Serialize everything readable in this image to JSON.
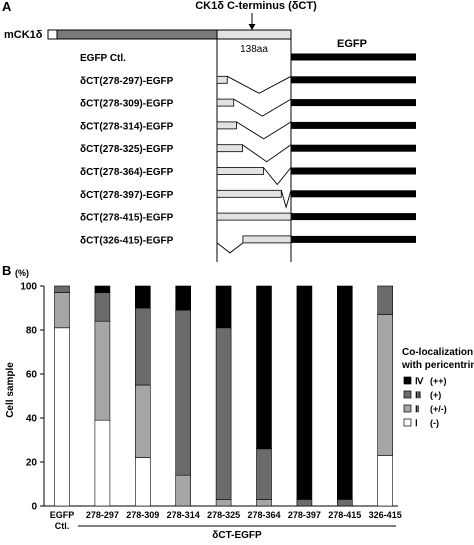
{
  "panel_a": {
    "label": "A",
    "protein_label": "mCK1δ",
    "cterm_label": "CK1δ C-terminus (δCT)",
    "length_label": "138aa",
    "egfp_label": "EGFP",
    "constructs": [
      {
        "label": "EGFP  Ctl.",
        "start": null,
        "end": null
      },
      {
        "label": "δCT(278-297)-EGFP",
        "start": 278,
        "end": 297
      },
      {
        "label": "δCT(278-309)-EGFP",
        "start": 278,
        "end": 309
      },
      {
        "label": "δCT(278-314)-EGFP",
        "start": 278,
        "end": 314
      },
      {
        "label": "δCT(278-325)-EGFP",
        "start": 278,
        "end": 325
      },
      {
        "label": "δCT(278-364)-EGFP",
        "start": 278,
        "end": 364
      },
      {
        "label": "δCT(278-397)-EGFP",
        "start": 278,
        "end": 397
      },
      {
        "label": "δCT(278-415)-EGFP",
        "start": 278,
        "end": 415
      },
      {
        "label": "δCT(326-415)-EGFP",
        "start": 326,
        "end": 415
      }
    ],
    "colors": {
      "kinase": "#7a7a7a",
      "cterm": "#e2e2e2",
      "egfp": "#000000"
    }
  },
  "panel_b": {
    "label": "B"
  },
  "chart_data": {
    "type": "bar",
    "stacked": true,
    "ylabel": "Cell sample",
    "yunit": "(%)",
    "xlabel": "δCT-EGFP",
    "ylim": [
      0,
      100
    ],
    "yticks": [
      0,
      20,
      40,
      60,
      80,
      100
    ],
    "categories": [
      "EGFP Ctl.",
      "278-297",
      "278-309",
      "278-314",
      "278-325",
      "278-364",
      "278-397",
      "278-415",
      "326-415"
    ],
    "series": [
      {
        "name": "Ⅰ",
        "symbol": "(-)",
        "color": "#ffffff",
        "values": [
          81,
          39,
          22,
          0,
          0,
          0,
          0,
          0,
          23
        ]
      },
      {
        "name": "Ⅱ",
        "symbol": "(+/-)",
        "color": "#a6a6a6",
        "values": [
          16,
          45,
          33,
          14,
          3,
          3,
          0,
          0,
          64
        ]
      },
      {
        "name": "Ⅲ",
        "symbol": "(+)",
        "color": "#6b6b6b",
        "values": [
          3,
          13,
          35,
          75,
          78,
          23,
          3,
          3,
          13
        ]
      },
      {
        "name": "Ⅳ",
        "symbol": "(++)",
        "color": "#000000",
        "values": [
          0,
          3,
          10,
          11,
          19,
          74,
          97,
          97,
          0
        ]
      }
    ],
    "legend": {
      "title_line1": "Co-localization",
      "title_line2": "with pericentrin",
      "position": "right"
    }
  }
}
